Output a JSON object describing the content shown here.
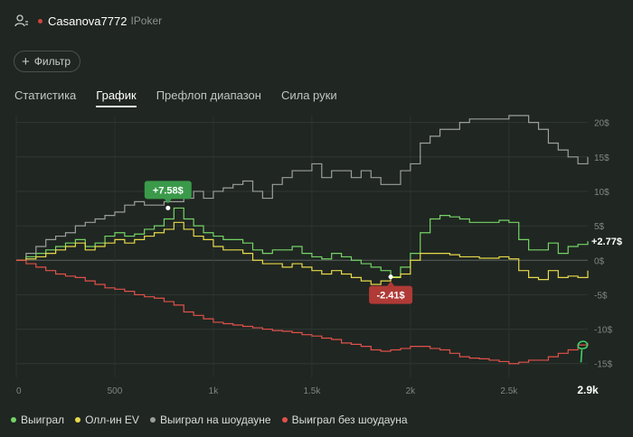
{
  "header": {
    "username": "Casanova7772",
    "room": "IPoker",
    "status_color": "#d0453f"
  },
  "filter": {
    "label": "Фильтр"
  },
  "tabs": [
    {
      "label": "Статистика",
      "active": false
    },
    {
      "label": "График",
      "active": true
    },
    {
      "label": "Префлоп диапазон",
      "active": false
    },
    {
      "label": "Сила руки",
      "active": false
    }
  ],
  "chart_data": {
    "type": "line",
    "xlabel": "",
    "ylabel": "",
    "xlim": [
      0,
      2900
    ],
    "ylim": [
      -17,
      21
    ],
    "grid": true,
    "x_ticks": [
      "0",
      "500",
      "1k",
      "1.5k",
      "2k",
      "2.5k",
      "2.9k"
    ],
    "x_tick_values": [
      0,
      500,
      1000,
      1500,
      2000,
      2500,
      2900
    ],
    "y_ticks": [
      "20$",
      "15$",
      "10$",
      "5$",
      "0$",
      "-5$",
      "-10$",
      "-15$"
    ],
    "y_tick_values": [
      20,
      15,
      10,
      5,
      0,
      -5,
      -10,
      -15
    ],
    "annotations": [
      {
        "text": "+7.58$",
        "x": 770,
        "y": 7.58,
        "color": "#3a9a4a"
      },
      {
        "text": "-2.41$",
        "x": 1900,
        "y": -2.41,
        "color": "#b03a36"
      },
      {
        "text": "+2.77$",
        "x": 2900,
        "y": 2.77,
        "color": ""
      }
    ],
    "series": [
      {
        "name": "Выиграл на шоудауне",
        "color": "#9b9f9c",
        "x": [
          0,
          50,
          100,
          150,
          200,
          250,
          300,
          350,
          400,
          450,
          500,
          550,
          600,
          650,
          700,
          750,
          800,
          850,
          900,
          950,
          1000,
          1050,
          1100,
          1150,
          1200,
          1250,
          1300,
          1350,
          1400,
          1450,
          1500,
          1550,
          1600,
          1650,
          1700,
          1750,
          1800,
          1850,
          1900,
          1950,
          2000,
          2050,
          2100,
          2150,
          2200,
          2250,
          2300,
          2350,
          2400,
          2450,
          2500,
          2550,
          2600,
          2650,
          2700,
          2750,
          2800,
          2850,
          2900
        ],
        "y": [
          0,
          1,
          2,
          3,
          3.5,
          4,
          5,
          5.5,
          6,
          6.5,
          7,
          8,
          8.5,
          8,
          8,
          8.5,
          8.5,
          9,
          10,
          9,
          10,
          10.5,
          11,
          11.5,
          10,
          9,
          11,
          12,
          13,
          13,
          14,
          12,
          13,
          13,
          12,
          13,
          12,
          11,
          11,
          13,
          14,
          17,
          18,
          19,
          19,
          20,
          20.5,
          20.5,
          20.5,
          20.5,
          21,
          21,
          20,
          19,
          17,
          16,
          15,
          14,
          15
        ]
      },
      {
        "name": "Выиграл",
        "color": "#74d365",
        "x": [
          0,
          50,
          100,
          150,
          200,
          250,
          300,
          350,
          400,
          450,
          500,
          550,
          600,
          650,
          700,
          750,
          800,
          850,
          900,
          950,
          1000,
          1050,
          1100,
          1150,
          1200,
          1250,
          1300,
          1350,
          1400,
          1450,
          1500,
          1550,
          1600,
          1650,
          1700,
          1750,
          1800,
          1850,
          1900,
          1950,
          2000,
          2050,
          2100,
          2150,
          2200,
          2250,
          2300,
          2350,
          2400,
          2450,
          2500,
          2550,
          2600,
          2650,
          2700,
          2750,
          2800,
          2850,
          2900
        ],
        "y": [
          0,
          0.5,
          1,
          1.5,
          2,
          2.5,
          3,
          2,
          2.5,
          3.5,
          4,
          3.5,
          3.8,
          4.5,
          5,
          6,
          7.58,
          6,
          5,
          4,
          3.5,
          3,
          3,
          2.5,
          1.5,
          1,
          1.5,
          1.5,
          2,
          1,
          0.5,
          0.2,
          1,
          0.5,
          0,
          -0.5,
          -1,
          -1.5,
          -2.41,
          -1,
          1,
          4,
          6,
          6.5,
          6.3,
          6,
          5.5,
          5.5,
          5.5,
          5.8,
          5.5,
          3,
          1.5,
          1.5,
          2.5,
          1,
          2,
          2.3,
          2.77
        ]
      },
      {
        "name": "Олл-ин EV",
        "color": "#e6d94a",
        "x": [
          0,
          50,
          100,
          150,
          200,
          250,
          300,
          350,
          400,
          450,
          500,
          550,
          600,
          650,
          700,
          750,
          800,
          850,
          900,
          950,
          1000,
          1050,
          1100,
          1150,
          1200,
          1250,
          1300,
          1350,
          1400,
          1450,
          1500,
          1550,
          1600,
          1650,
          1700,
          1750,
          1800,
          1850,
          1900,
          1950,
          2000,
          2050,
          2100,
          2150,
          2200,
          2250,
          2300,
          2350,
          2400,
          2450,
          2500,
          2550,
          2600,
          2650,
          2700,
          2750,
          2800,
          2850,
          2900
        ],
        "y": [
          0,
          0.2,
          0.5,
          1,
          1.5,
          2,
          2.5,
          1.5,
          2,
          2.5,
          3,
          2.5,
          3,
          3.5,
          4,
          4.5,
          5.5,
          4.5,
          3.5,
          3,
          2,
          1.5,
          1.5,
          1,
          0,
          -0.5,
          -0.5,
          -1,
          -0.5,
          -1,
          -1.5,
          -2,
          -1.5,
          -2,
          -2.5,
          -3,
          -3.5,
          -3,
          -2.5,
          -2,
          0,
          1,
          1,
          1,
          0.8,
          0.5,
          0.5,
          0.3,
          0.3,
          0.5,
          0.2,
          -1.5,
          -2.5,
          -2.8,
          -1.5,
          -2.5,
          -2.3,
          -2.5,
          -1.5
        ]
      },
      {
        "name": "Выиграл без шоудауна",
        "color": "#e0514a",
        "x": [
          0,
          50,
          100,
          150,
          200,
          250,
          300,
          350,
          400,
          450,
          500,
          550,
          600,
          650,
          700,
          750,
          800,
          850,
          900,
          950,
          1000,
          1050,
          1100,
          1150,
          1200,
          1250,
          1300,
          1350,
          1400,
          1450,
          1500,
          1550,
          1600,
          1650,
          1700,
          1750,
          1800,
          1850,
          1900,
          1950,
          2000,
          2050,
          2100,
          2150,
          2200,
          2250,
          2300,
          2350,
          2400,
          2450,
          2500,
          2550,
          2600,
          2650,
          2700,
          2750,
          2800,
          2850,
          2900
        ],
        "y": [
          0,
          -0.5,
          -1,
          -1.5,
          -2,
          -2.3,
          -2.5,
          -3,
          -3.5,
          -4,
          -4.2,
          -4.5,
          -5,
          -5.3,
          -5.5,
          -6,
          -6.5,
          -7.5,
          -8,
          -8.5,
          -9,
          -9.2,
          -9.4,
          -9.6,
          -9.8,
          -10,
          -10.2,
          -10.3,
          -10.5,
          -10.8,
          -11,
          -11.3,
          -11.5,
          -12,
          -12.2,
          -12.5,
          -13,
          -13.2,
          -13,
          -12.8,
          -12.5,
          -12.5,
          -12.8,
          -13,
          -13.5,
          -14,
          -14.2,
          -14.3,
          -14.5,
          -14.7,
          -15,
          -14.8,
          -14.5,
          -14.5,
          -14,
          -13.5,
          -13,
          -12.3,
          -12
        ]
      }
    ]
  },
  "legend": [
    {
      "label": "Выиграл",
      "color": "#74d365"
    },
    {
      "label": "Олл-ин EV",
      "color": "#e6d94a"
    },
    {
      "label": "Выиграл на шоудауне",
      "color": "#9b9f9c"
    },
    {
      "label": "Выиграл без шоудауна",
      "color": "#e0514a"
    }
  ]
}
